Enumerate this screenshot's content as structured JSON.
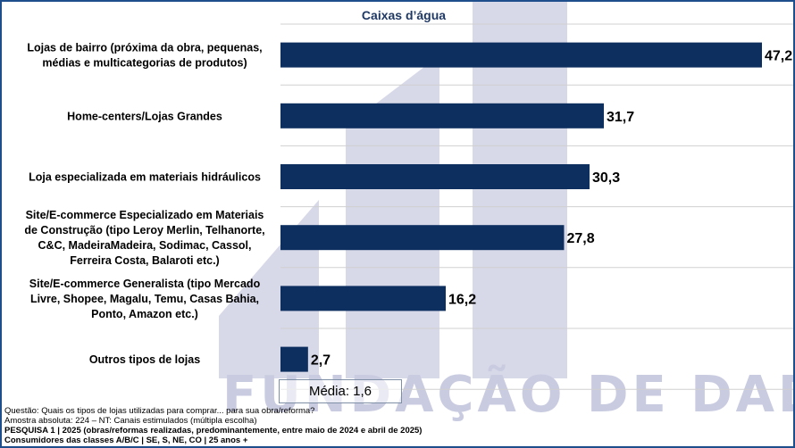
{
  "chart_data": {
    "type": "bar",
    "orientation": "horizontal",
    "title": "Caixas d’água",
    "categories": [
      [
        "Lojas de bairro (próxima da obra, pequenas,",
        "médias e multicategorias de produtos)"
      ],
      [
        "Home-centers/Lojas Grandes"
      ],
      [
        "Loja especializada em materiais hidráulicos"
      ],
      [
        "Site/E-commerce Especializado em Materiais",
        "de Construção (tipo Leroy Merlin, Telhanorte,",
        "C&C, MadeiraMadeira, Sodimac, Cassol,",
        "Ferreira Costa, Balaroti etc.)"
      ],
      [
        "Site/E-commerce Generalista (tipo Mercado",
        "Livre, Shopee, Magalu, Temu, Casas Bahia,",
        "Ponto, Amazon etc.)"
      ],
      [
        "Outros tipos de lojas"
      ]
    ],
    "values": [
      47.2,
      31.7,
      30.3,
      27.8,
      16.2,
      2.7
    ],
    "value_labels": [
      "47,2",
      "31,7",
      "30,3",
      "27,8",
      "16,2",
      "2,7"
    ],
    "xlim": [
      0,
      47.2
    ],
    "grid": "horizontal separators",
    "bar_color": "#0d2f5f",
    "xlabel": "",
    "ylabel": ""
  },
  "watermark": "FUNDAÇÃO DE DADOS",
  "media": "Média: 1,6",
  "footnotes": {
    "line1": "Questão: Quais os tipos de lojas utilizadas para comprar... para sua obra/reforma?",
    "line2": "Amostra absoluta: 224 – NT: Canais estimulados (múltipla escolha)",
    "line3": "PESQUISA 1 | 2025 (obras/reformas realizadas, predominantemente, entre maio de 2024 e abril de 2025)",
    "line4": "Consumidores das classes A/B/C | SE, S, NE, CO | 25 anos +"
  },
  "colors": {
    "title": "#1f3864",
    "bar": "#0d2f5f",
    "watermark": "#c9cbe0",
    "border": "#1f4e8c"
  }
}
